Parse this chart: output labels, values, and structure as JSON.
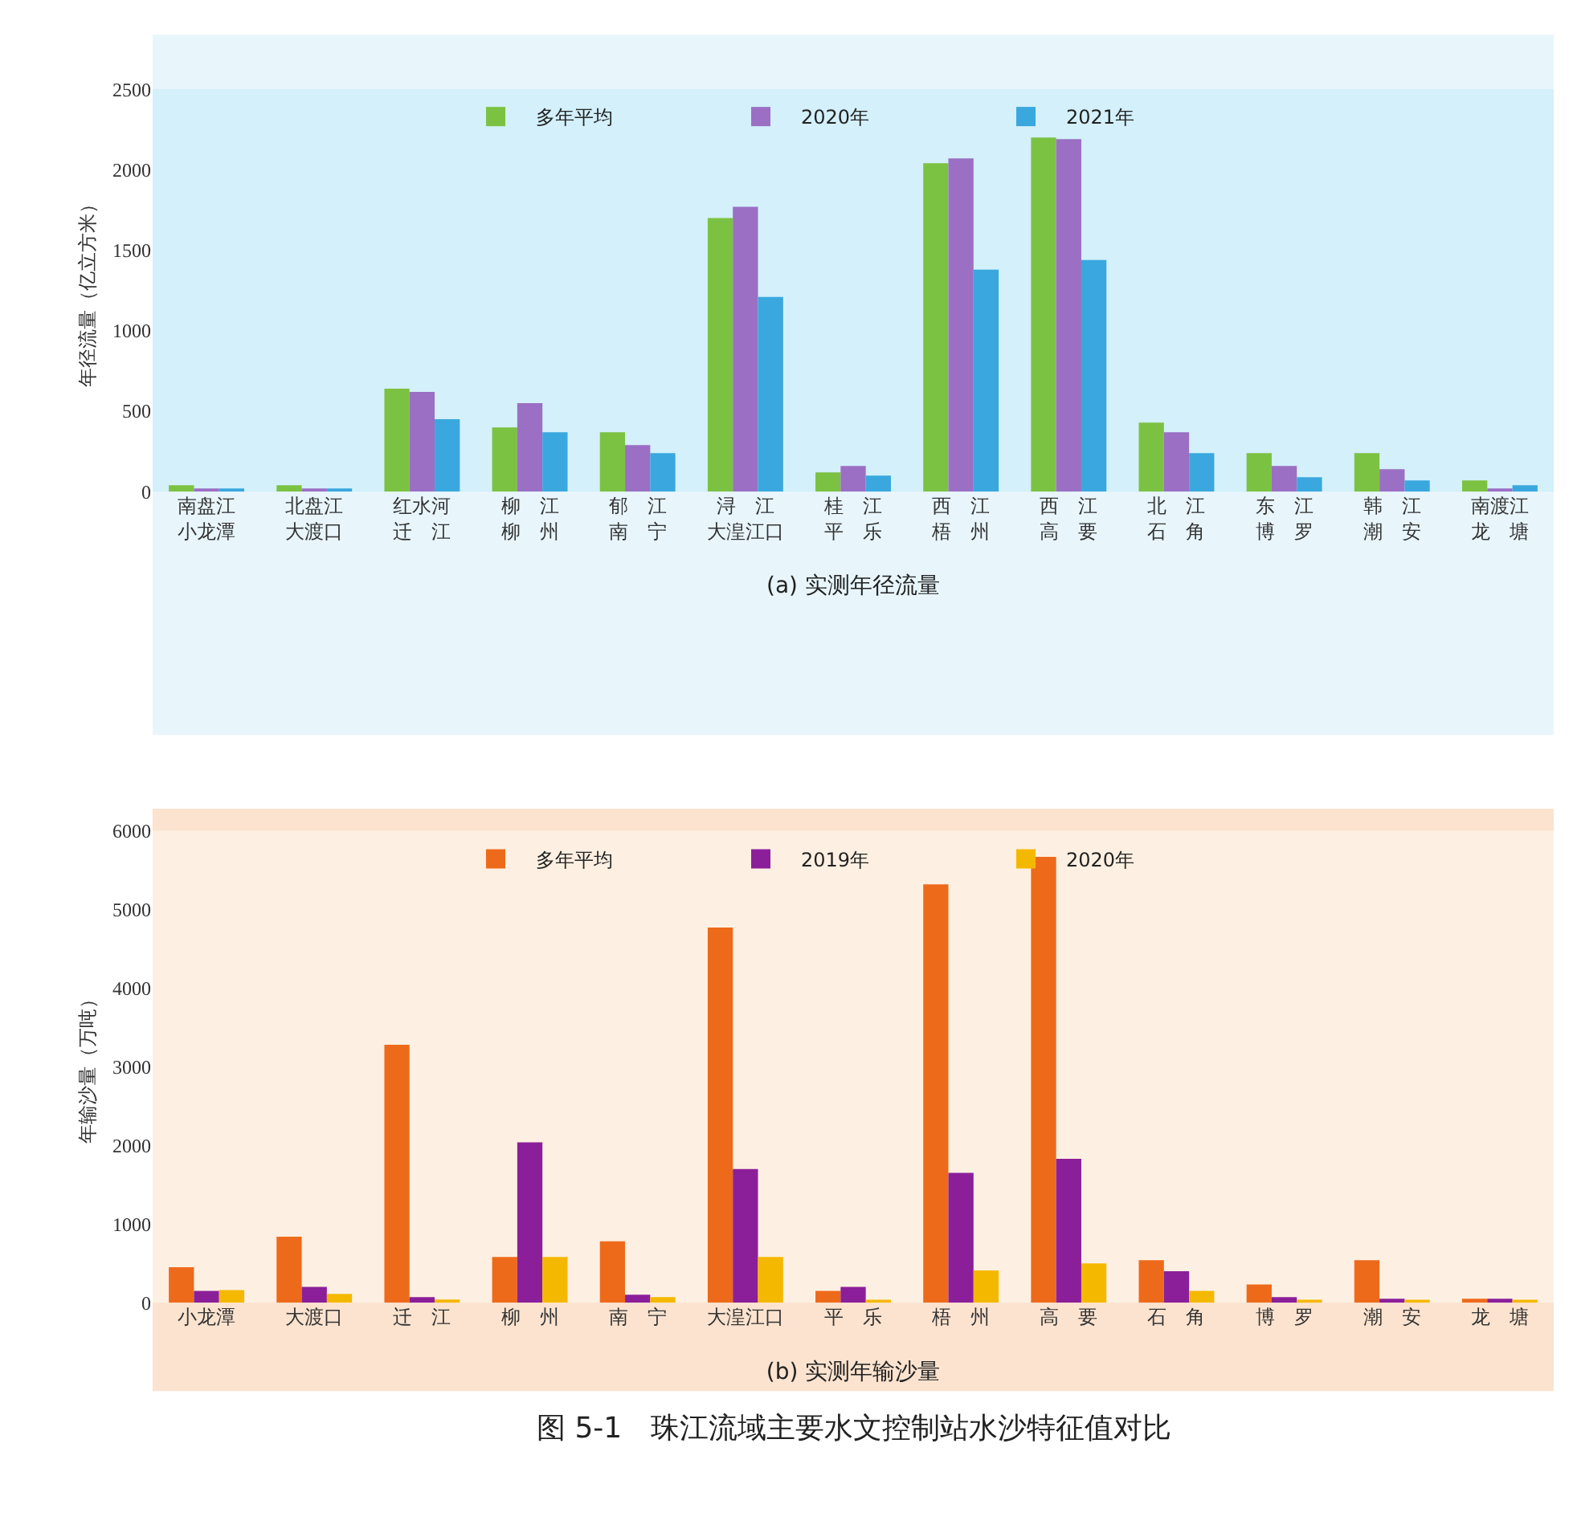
{
  "chart_data": [
    {
      "type": "bar",
      "xlabel": "(a) 实测年径流量",
      "ylabel": "年径流量（亿立方米）",
      "legend": "top",
      "categories": [
        "南盘江小龙潭",
        "北盘江大渡口",
        "红水河迁　江",
        "柳　江柳　州",
        "郁　江南　宁",
        "浔　江大湟江口",
        "桂　江平　乐",
        "西　江梧　州",
        "西　江高　要",
        "北　江石　角",
        "东　江博　罗",
        "韩　江潮　安",
        "南渡江龙　塘"
      ],
      "series": [
        {
          "name": "多年平均",
          "color": "#7cc242",
          "values": [
            40,
            40,
            640,
            400,
            370,
            1700,
            120,
            2040,
            2200,
            430,
            240,
            240,
            70
          ]
        },
        {
          "name": "2020年",
          "color": "#9b6fc4",
          "values": [
            20,
            20,
            620,
            550,
            290,
            1770,
            160,
            2070,
            2190,
            370,
            160,
            140,
            20
          ]
        },
        {
          "name": "2021年",
          "color": "#3aa8de",
          "values": [
            20,
            20,
            450,
            370,
            240,
            1210,
            100,
            1380,
            1440,
            240,
            90,
            70,
            40
          ]
        }
      ],
      "ylim": [
        0,
        2500
      ],
      "yticks": [
        0,
        500,
        1000,
        1500,
        2000,
        2500
      ]
    },
    {
      "type": "bar",
      "xlabel": "(b) 实测年输沙量",
      "ylabel": "年输沙量（万吨）",
      "legend": "top",
      "annotations": [
        "图 5-1　珠江流域主要水文控制站水沙特征值对比"
      ],
      "categories": [
        "小龙潭",
        "大渡口",
        "迁　江",
        "柳　州",
        "南　宁",
        "大湟江口",
        "平　乐",
        "梧　州",
        "高　要",
        "石　角",
        "博　罗",
        "潮　安",
        "龙　塘"
      ],
      "series": [
        {
          "name": "多年平均",
          "color": "#ee6a1b",
          "values": [
            450,
            840,
            3280,
            580,
            780,
            4770,
            150,
            5320,
            5670,
            540,
            230,
            540,
            50
          ]
        },
        {
          "name": "2019年",
          "color": "#8b1f9a",
          "values": [
            150,
            200,
            70,
            2040,
            100,
            1700,
            200,
            1650,
            1830,
            400,
            70,
            50,
            50
          ]
        },
        {
          "name": "2020年",
          "color": "#f5b800",
          "values": [
            160,
            110,
            40,
            580,
            70,
            580,
            20,
            410,
            500,
            150,
            30,
            30,
            30
          ]
        }
      ],
      "ylim": [
        0,
        6000
      ],
      "yticks": [
        0,
        1000,
        2000,
        3000,
        4000,
        5000,
        6000
      ]
    }
  ]
}
